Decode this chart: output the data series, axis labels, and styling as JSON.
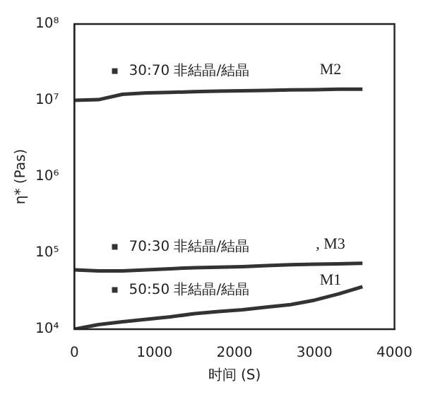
{
  "chart_data": {
    "type": "line",
    "xlabel": "时间 (S)",
    "ylabel": "η* (Pas)",
    "log": true,
    "grid": false,
    "legend": "left",
    "marker": "none",
    "line_style": "solid",
    "x": [
      0,
      300,
      600,
      900,
      1200,
      1500,
      1800,
      2100,
      2400,
      2700,
      3000,
      3300,
      3600
    ],
    "xlim": [
      0,
      4000
    ],
    "xticks": [
      0,
      1000,
      2000,
      3000,
      4000
    ],
    "ylim": [
      10000,
      100000000
    ],
    "yticks": [
      {
        "value": 10000,
        "label": "10⁴"
      },
      {
        "value": 100000,
        "label": "10⁵"
      },
      {
        "value": 1000000,
        "label": "10⁶"
      },
      {
        "value": 10000000,
        "label": "10⁷"
      },
      {
        "value": 100000000,
        "label": "10⁸"
      }
    ],
    "series": [
      {
        "name": "30:70 非結晶/結晶",
        "color": "#333333",
        "values": [
          10000000,
          10200000,
          12000000,
          12500000,
          12700000,
          13000000,
          13200000,
          13300000,
          13500000,
          13700000,
          13800000,
          14000000,
          14000000
        ]
      },
      {
        "name": "70:30 非結晶/結晶",
        "color": "#333333",
        "values": [
          60000,
          58000,
          58000,
          60000,
          62000,
          64000,
          65000,
          66000,
          68000,
          70000,
          71000,
          72000,
          73000
        ]
      },
      {
        "name": "50:50 非結晶/結晶",
        "color": "#333333",
        "values": [
          10000,
          11500,
          12500,
          13500,
          14500,
          16000,
          17000,
          18000,
          19500,
          21000,
          24000,
          29000,
          36000
        ]
      }
    ],
    "annotations": [
      "M2",
      ", M3",
      "M1"
    ]
  }
}
